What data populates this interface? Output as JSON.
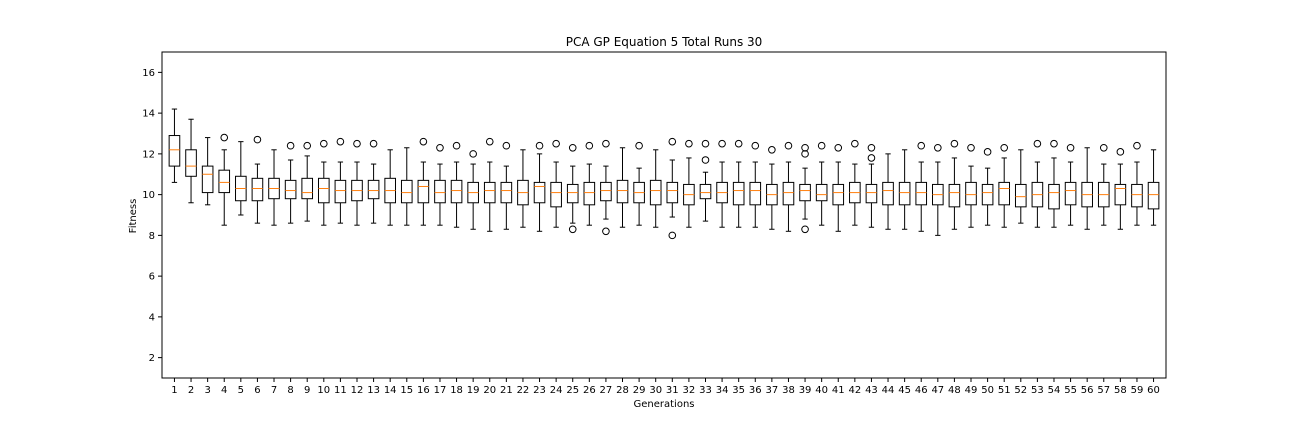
{
  "chart_data": {
    "type": "box",
    "title": "PCA GP Equation 5 Total Runs 30",
    "xlabel": "Generations",
    "ylabel": "Fitness",
    "ylim": [
      1,
      17
    ],
    "yticks": [
      2,
      4,
      6,
      8,
      10,
      12,
      14,
      16
    ],
    "categories": [
      "1",
      "2",
      "3",
      "4",
      "5",
      "6",
      "7",
      "8",
      "9",
      "10",
      "11",
      "12",
      "13",
      "14",
      "15",
      "16",
      "17",
      "18",
      "19",
      "20",
      "21",
      "22",
      "23",
      "24",
      "25",
      "26",
      "27",
      "28",
      "29",
      "30",
      "31",
      "32",
      "33",
      "34",
      "35",
      "36",
      "37",
      "38",
      "39",
      "40",
      "41",
      "42",
      "43",
      "44",
      "45",
      "46",
      "47",
      "48",
      "49",
      "50",
      "51",
      "52",
      "53",
      "54",
      "55",
      "56",
      "57",
      "58",
      "59",
      "60"
    ],
    "boxes": [
      {
        "wl": 10.6,
        "q1": 11.4,
        "med": 12.2,
        "q3": 12.9,
        "wh": 14.2,
        "out": []
      },
      {
        "wl": 9.6,
        "q1": 10.9,
        "med": 11.4,
        "q3": 12.2,
        "wh": 13.7,
        "out": []
      },
      {
        "wl": 9.5,
        "q1": 10.1,
        "med": 11.0,
        "q3": 11.4,
        "wh": 12.8,
        "out": []
      },
      {
        "wl": 8.5,
        "q1": 10.1,
        "med": 10.6,
        "q3": 11.2,
        "wh": 12.2,
        "out": [
          12.8
        ]
      },
      {
        "wl": 9.0,
        "q1": 9.7,
        "med": 10.3,
        "q3": 10.9,
        "wh": 12.6,
        "out": []
      },
      {
        "wl": 8.6,
        "q1": 9.7,
        "med": 10.3,
        "q3": 10.8,
        "wh": 11.5,
        "out": [
          12.7
        ]
      },
      {
        "wl": 8.5,
        "q1": 9.8,
        "med": 10.3,
        "q3": 10.8,
        "wh": 12.2,
        "out": []
      },
      {
        "wl": 8.6,
        "q1": 9.8,
        "med": 10.2,
        "q3": 10.7,
        "wh": 11.7,
        "out": [
          12.4
        ]
      },
      {
        "wl": 8.7,
        "q1": 9.8,
        "med": 10.1,
        "q3": 10.8,
        "wh": 11.9,
        "out": [
          12.4
        ]
      },
      {
        "wl": 8.5,
        "q1": 9.6,
        "med": 10.3,
        "q3": 10.8,
        "wh": 11.6,
        "out": [
          12.5
        ]
      },
      {
        "wl": 8.6,
        "q1": 9.6,
        "med": 10.2,
        "q3": 10.7,
        "wh": 11.6,
        "out": [
          12.6
        ]
      },
      {
        "wl": 8.5,
        "q1": 9.7,
        "med": 10.2,
        "q3": 10.7,
        "wh": 11.6,
        "out": [
          12.5
        ]
      },
      {
        "wl": 8.6,
        "q1": 9.8,
        "med": 10.2,
        "q3": 10.7,
        "wh": 11.5,
        "out": [
          12.5
        ]
      },
      {
        "wl": 8.5,
        "q1": 9.6,
        "med": 10.2,
        "q3": 10.8,
        "wh": 12.2,
        "out": []
      },
      {
        "wl": 8.5,
        "q1": 9.6,
        "med": 10.1,
        "q3": 10.7,
        "wh": 12.3,
        "out": []
      },
      {
        "wl": 8.5,
        "q1": 9.6,
        "med": 10.4,
        "q3": 10.7,
        "wh": 11.6,
        "out": [
          12.6
        ]
      },
      {
        "wl": 8.5,
        "q1": 9.6,
        "med": 10.1,
        "q3": 10.7,
        "wh": 11.5,
        "out": [
          12.3
        ]
      },
      {
        "wl": 8.4,
        "q1": 9.6,
        "med": 10.2,
        "q3": 10.7,
        "wh": 11.6,
        "out": [
          12.4
        ]
      },
      {
        "wl": 8.3,
        "q1": 9.6,
        "med": 10.1,
        "q3": 10.6,
        "wh": 11.5,
        "out": [
          12.0
        ]
      },
      {
        "wl": 8.2,
        "q1": 9.6,
        "med": 10.2,
        "q3": 10.6,
        "wh": 11.6,
        "out": [
          12.6
        ]
      },
      {
        "wl": 8.3,
        "q1": 9.6,
        "med": 10.2,
        "q3": 10.6,
        "wh": 11.4,
        "out": [
          12.4
        ]
      },
      {
        "wl": 8.4,
        "q1": 9.5,
        "med": 10.1,
        "q3": 10.7,
        "wh": 12.2,
        "out": []
      },
      {
        "wl": 8.2,
        "q1": 9.6,
        "med": 10.4,
        "q3": 10.6,
        "wh": 12.0,
        "out": [
          12.4
        ]
      },
      {
        "wl": 8.4,
        "q1": 9.4,
        "med": 10.1,
        "q3": 10.6,
        "wh": 11.6,
        "out": [
          12.5
        ]
      },
      {
        "wl": 8.6,
        "q1": 9.6,
        "med": 10.1,
        "q3": 10.5,
        "wh": 11.4,
        "out": [
          12.3,
          8.3
        ]
      },
      {
        "wl": 8.5,
        "q1": 9.5,
        "med": 10.1,
        "q3": 10.6,
        "wh": 11.5,
        "out": [
          12.4
        ]
      },
      {
        "wl": 8.8,
        "q1": 9.7,
        "med": 10.2,
        "q3": 10.6,
        "wh": 11.4,
        "out": [
          12.5,
          8.2
        ]
      },
      {
        "wl": 8.4,
        "q1": 9.6,
        "med": 10.2,
        "q3": 10.7,
        "wh": 12.3,
        "out": []
      },
      {
        "wl": 8.5,
        "q1": 9.6,
        "med": 10.1,
        "q3": 10.6,
        "wh": 11.3,
        "out": [
          12.4
        ]
      },
      {
        "wl": 8.4,
        "q1": 9.5,
        "med": 10.2,
        "q3": 10.7,
        "wh": 12.2,
        "out": []
      },
      {
        "wl": 8.9,
        "q1": 9.6,
        "med": 10.2,
        "q3": 10.6,
        "wh": 11.7,
        "out": [
          12.6,
          8.0
        ]
      },
      {
        "wl": 8.4,
        "q1": 9.5,
        "med": 10.0,
        "q3": 10.5,
        "wh": 11.8,
        "out": [
          12.5
        ]
      },
      {
        "wl": 8.7,
        "q1": 9.8,
        "med": 10.1,
        "q3": 10.5,
        "wh": 11.1,
        "out": [
          12.5,
          11.7
        ]
      },
      {
        "wl": 8.4,
        "q1": 9.6,
        "med": 10.1,
        "q3": 10.6,
        "wh": 11.6,
        "out": [
          12.5
        ]
      },
      {
        "wl": 8.4,
        "q1": 9.5,
        "med": 10.2,
        "q3": 10.6,
        "wh": 11.6,
        "out": [
          12.5
        ]
      },
      {
        "wl": 8.4,
        "q1": 9.5,
        "med": 10.2,
        "q3": 10.6,
        "wh": 11.6,
        "out": [
          12.4
        ]
      },
      {
        "wl": 8.3,
        "q1": 9.5,
        "med": 10.0,
        "q3": 10.5,
        "wh": 11.5,
        "out": [
          12.2
        ]
      },
      {
        "wl": 8.2,
        "q1": 9.5,
        "med": 10.1,
        "q3": 10.6,
        "wh": 11.6,
        "out": [
          12.4
        ]
      },
      {
        "wl": 8.8,
        "q1": 9.7,
        "med": 10.2,
        "q3": 10.5,
        "wh": 11.3,
        "out": [
          12.3,
          12.0,
          8.3
        ]
      },
      {
        "wl": 8.5,
        "q1": 9.7,
        "med": 10.0,
        "q3": 10.5,
        "wh": 11.6,
        "out": [
          12.4
        ]
      },
      {
        "wl": 8.2,
        "q1": 9.5,
        "med": 10.1,
        "q3": 10.5,
        "wh": 11.6,
        "out": [
          12.3
        ]
      },
      {
        "wl": 8.5,
        "q1": 9.6,
        "med": 10.1,
        "q3": 10.6,
        "wh": 11.5,
        "out": [
          12.5
        ]
      },
      {
        "wl": 8.4,
        "q1": 9.6,
        "med": 10.1,
        "q3": 10.5,
        "wh": 11.5,
        "out": [
          12.3,
          11.8
        ]
      },
      {
        "wl": 8.3,
        "q1": 9.5,
        "med": 10.2,
        "q3": 10.6,
        "wh": 12.0,
        "out": []
      },
      {
        "wl": 8.3,
        "q1": 9.5,
        "med": 10.1,
        "q3": 10.6,
        "wh": 12.2,
        "out": []
      },
      {
        "wl": 8.2,
        "q1": 9.5,
        "med": 10.1,
        "q3": 10.6,
        "wh": 11.6,
        "out": [
          12.4
        ]
      },
      {
        "wl": 8.0,
        "q1": 9.5,
        "med": 10.0,
        "q3": 10.5,
        "wh": 11.6,
        "out": [
          12.3
        ]
      },
      {
        "wl": 8.3,
        "q1": 9.4,
        "med": 10.1,
        "q3": 10.5,
        "wh": 11.8,
        "out": [
          12.5
        ]
      },
      {
        "wl": 8.4,
        "q1": 9.5,
        "med": 10.0,
        "q3": 10.6,
        "wh": 11.4,
        "out": [
          12.3
        ]
      },
      {
        "wl": 8.5,
        "q1": 9.5,
        "med": 10.1,
        "q3": 10.5,
        "wh": 11.3,
        "out": [
          12.1
        ]
      },
      {
        "wl": 8.4,
        "q1": 9.5,
        "med": 10.3,
        "q3": 10.6,
        "wh": 11.8,
        "out": [
          12.3
        ]
      },
      {
        "wl": 8.6,
        "q1": 9.4,
        "med": 9.9,
        "q3": 10.5,
        "wh": 12.2,
        "out": []
      },
      {
        "wl": 8.4,
        "q1": 9.4,
        "med": 10.0,
        "q3": 10.6,
        "wh": 11.6,
        "out": [
          12.5
        ]
      },
      {
        "wl": 8.4,
        "q1": 9.3,
        "med": 10.1,
        "q3": 10.5,
        "wh": 11.8,
        "out": [
          12.5
        ]
      },
      {
        "wl": 8.5,
        "q1": 9.5,
        "med": 10.2,
        "q3": 10.6,
        "wh": 11.6,
        "out": [
          12.3
        ]
      },
      {
        "wl": 8.3,
        "q1": 9.4,
        "med": 10.0,
        "q3": 10.6,
        "wh": 12.3,
        "out": []
      },
      {
        "wl": 8.5,
        "q1": 9.4,
        "med": 10.0,
        "q3": 10.6,
        "wh": 11.5,
        "out": [
          12.3
        ]
      },
      {
        "wl": 8.3,
        "q1": 9.5,
        "med": 10.3,
        "q3": 10.5,
        "wh": 11.5,
        "out": [
          12.1
        ]
      },
      {
        "wl": 8.5,
        "q1": 9.4,
        "med": 10.0,
        "q3": 10.5,
        "wh": 11.6,
        "out": [
          12.4
        ]
      },
      {
        "wl": 8.5,
        "q1": 9.3,
        "med": 10.0,
        "q3": 10.6,
        "wh": 12.2,
        "out": []
      }
    ],
    "colors": {
      "box": "#000000",
      "median": "#ff7f0e",
      "frame": "#000000"
    },
    "grid": false,
    "legend": "none"
  }
}
